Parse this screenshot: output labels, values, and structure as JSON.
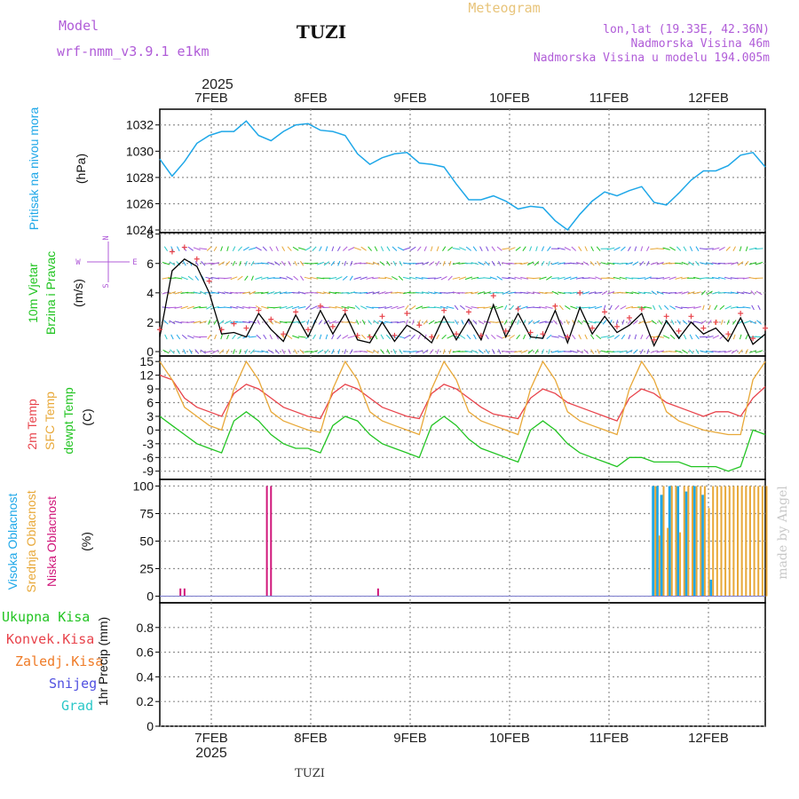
{
  "header": {
    "model_label": "Model",
    "model_name": "wrf-nmm_v3.9.1  e1km",
    "station": "TUZI",
    "title": "Meteogram",
    "lonlat": "lon,lat (19.33E, 42.36N)",
    "elevation": "Nadmorska Visina 46m",
    "model_elevation": "Nadmorska Visina u modelu 194.005m"
  },
  "footer": {
    "station": "TUZI",
    "credit": "made by Angel"
  },
  "colors": {
    "pressure": "#1ea7e8",
    "temp2m": "#e8434b",
    "sfc_temp": "#e8a838",
    "dewpt": "#22c422",
    "wind_speed": "#000000",
    "gust": "#e8434b",
    "cloud_high": "#1ea7e8",
    "cloud_mid": "#e8a838",
    "cloud_low": "#d0167a",
    "purple": "#b05cd8",
    "grid": "#909090"
  },
  "chart_data": [
    {
      "type": "line",
      "panel": "pressure",
      "labels": [
        "Pritisak na nivou mora"
      ],
      "ylabel": "(hPa)",
      "ylim": [
        1023.8,
        1033.2
      ],
      "yticks": [
        1024,
        1026,
        1028,
        1030,
        1032
      ],
      "year_label": "2025",
      "x_tick_labels": [
        "7FEB",
        "8FEB",
        "9FEB",
        "10FEB",
        "11FEB",
        "12FEB"
      ],
      "x": [
        0,
        3,
        6,
        9,
        12,
        15,
        18,
        21,
        24,
        27,
        30,
        33,
        36,
        39,
        42,
        45,
        48,
        51,
        54,
        57,
        60,
        63,
        66,
        69,
        72,
        75,
        78,
        81,
        84,
        87,
        90,
        93,
        96,
        99,
        102,
        105,
        108,
        111,
        114,
        117,
        120,
        123,
        126,
        129,
        132,
        135,
        138,
        141,
        144,
        147
      ],
      "values": [
        1029.4,
        1028.1,
        1029.2,
        1030.6,
        1031.2,
        1031.5,
        1031.5,
        1032.3,
        1031.2,
        1030.8,
        1031.5,
        1032.0,
        1032.1,
        1031.6,
        1031.5,
        1031.2,
        1029.8,
        1029.0,
        1029.5,
        1029.8,
        1029.9,
        1029.1,
        1029.0,
        1028.8,
        1027.5,
        1026.3,
        1026.3,
        1026.6,
        1026.2,
        1025.6,
        1025.8,
        1025.7,
        1024.7,
        1024.0,
        1025.2,
        1026.2,
        1026.9,
        1026.6,
        1027.0,
        1027.3,
        1026.1,
        1025.9,
        1026.8,
        1027.8,
        1028.5,
        1028.5,
        1028.9,
        1029.7,
        1029.9,
        1028.8
      ]
    },
    {
      "type": "line",
      "panel": "wind",
      "labels": [
        "10m Vjetar",
        "Brzina i Pravac"
      ],
      "ylabel": "(m/s)",
      "ylim": [
        -0.3,
        8.1
      ],
      "yticks": [
        0,
        2,
        4,
        6,
        8
      ],
      "compass": {
        "n": "N",
        "s": "S",
        "e": "E",
        "w": "W"
      },
      "series": [
        {
          "role": "speed",
          "x": [
            0,
            3,
            6,
            9,
            12,
            15,
            18,
            21,
            24,
            27,
            30,
            33,
            36,
            39,
            42,
            45,
            48,
            51,
            54,
            57,
            60,
            63,
            66,
            69,
            72,
            75,
            78,
            81,
            84,
            87,
            90,
            93,
            96,
            99,
            102,
            105,
            108,
            111,
            114,
            117,
            120,
            123,
            126,
            129,
            132,
            135,
            138,
            141,
            144,
            147
          ],
          "values": [
            1.0,
            5.5,
            6.3,
            5.8,
            4.0,
            1.2,
            1.3,
            1.0,
            2.6,
            1.5,
            0.7,
            2.5,
            1.0,
            2.8,
            1.2,
            2.6,
            0.8,
            0.6,
            2.0,
            0.7,
            1.8,
            1.3,
            0.6,
            2.4,
            0.8,
            2.2,
            0.8,
            3.2,
            1.0,
            2.6,
            1.0,
            0.9,
            2.8,
            0.6,
            3.0,
            1.2,
            2.4,
            1.3,
            1.8,
            2.6,
            0.4,
            2.1,
            0.9,
            2.0,
            1.2,
            1.6,
            0.7,
            2.3,
            0.5,
            1.2
          ]
        },
        {
          "role": "gust",
          "x": [
            0,
            3,
            6,
            9,
            12,
            15,
            18,
            21,
            24,
            27,
            30,
            33,
            36,
            39,
            42,
            45,
            48,
            51,
            54,
            57,
            60,
            63,
            66,
            69,
            72,
            75,
            78,
            81,
            84,
            87,
            90,
            93,
            96,
            99,
            102,
            105,
            108,
            111,
            114,
            117,
            120,
            123,
            126,
            129,
            132,
            135,
            138,
            141,
            144,
            147
          ],
          "values": [
            1.5,
            6.8,
            7.1,
            6.3,
            4.8,
            1.5,
            1.9,
            1.6,
            2.8,
            2.2,
            1.2,
            2.7,
            1.5,
            3.1,
            1.7,
            2.8,
            1.1,
            1.0,
            2.4,
            1.1,
            2.6,
            1.8,
            1.0,
            2.8,
            1.2,
            2.7,
            1.1,
            3.8,
            1.4,
            2.9,
            1.3,
            1.2,
            3.1,
            1.0,
            4.0,
            1.6,
            2.7,
            1.7,
            2.3,
            2.9,
            0.8,
            2.4,
            1.4,
            2.4,
            1.6,
            2.0,
            1.2,
            2.6,
            0.9,
            1.6
          ]
        }
      ]
    },
    {
      "type": "line",
      "panel": "temperature",
      "labels": [
        "2m Temp",
        "SFC Temp",
        "dewpt Temp"
      ],
      "ylabel": "(C)",
      "ylim": [
        -10.8,
        16.2
      ],
      "yticks": [
        -9,
        -6,
        -3,
        0,
        3,
        6,
        9,
        12,
        15
      ],
      "series": [
        {
          "role": "temp2m",
          "x": [
            0,
            3,
            6,
            9,
            12,
            15,
            18,
            21,
            24,
            27,
            30,
            33,
            36,
            39,
            42,
            45,
            48,
            51,
            54,
            57,
            60,
            63,
            66,
            69,
            72,
            75,
            78,
            81,
            84,
            87,
            90,
            93,
            96,
            99,
            102,
            105,
            108,
            111,
            114,
            117,
            120,
            123,
            126,
            129,
            132,
            135,
            138,
            141,
            144,
            147
          ],
          "values": [
            12,
            11,
            7,
            5,
            4,
            3,
            8,
            10,
            9,
            7,
            5,
            4,
            3,
            2.5,
            8,
            10,
            9,
            7,
            5,
            4,
            3,
            2.5,
            8,
            10,
            9,
            7,
            5,
            3.5,
            3,
            2.5,
            7,
            9,
            8,
            6,
            5,
            4,
            3,
            2,
            7,
            9,
            8,
            6,
            5,
            4,
            3,
            4,
            4,
            3,
            7,
            9.5
          ]
        },
        {
          "role": "sfc_temp",
          "x": [
            0,
            3,
            6,
            9,
            12,
            15,
            18,
            21,
            24,
            27,
            30,
            33,
            36,
            39,
            42,
            45,
            48,
            51,
            54,
            57,
            60,
            63,
            66,
            69,
            72,
            75,
            78,
            81,
            84,
            87,
            90,
            93,
            96,
            99,
            102,
            105,
            108,
            111,
            114,
            117,
            120,
            123,
            126,
            129,
            132,
            135,
            138,
            141,
            144,
            147
          ],
          "values": [
            15,
            11,
            5,
            3,
            1,
            0,
            9,
            15,
            11,
            4,
            2,
            1,
            0,
            -0.5,
            9,
            15,
            11,
            4,
            2,
            1,
            0,
            -1,
            9,
            15,
            11,
            4,
            2,
            1,
            0,
            -1,
            9,
            15,
            11,
            4,
            2,
            1,
            0,
            -1,
            9,
            15,
            11,
            4,
            2,
            1,
            0,
            -0.5,
            -1,
            -1,
            11,
            15
          ]
        },
        {
          "role": "dewpt",
          "x": [
            0,
            3,
            6,
            9,
            12,
            15,
            18,
            21,
            24,
            27,
            30,
            33,
            36,
            39,
            42,
            45,
            48,
            51,
            54,
            57,
            60,
            63,
            66,
            69,
            72,
            75,
            78,
            81,
            84,
            87,
            90,
            93,
            96,
            99,
            102,
            105,
            108,
            111,
            114,
            117,
            120,
            123,
            126,
            129,
            132,
            135,
            138,
            141,
            144,
            147
          ],
          "values": [
            3,
            1,
            -1,
            -3,
            -4,
            -5,
            2,
            4,
            2,
            -1,
            -3,
            -4,
            -4,
            -5,
            1,
            3,
            2,
            -1,
            -3,
            -4,
            -5,
            -6,
            1,
            3,
            1,
            -2,
            -4,
            -5,
            -6,
            -7,
            0,
            2,
            0,
            -3,
            -5,
            -6,
            -7,
            -8,
            -6,
            -6,
            -7,
            -7,
            -7,
            -8,
            -8,
            -8,
            -9,
            -8,
            0,
            -1
          ]
        }
      ]
    },
    {
      "type": "bar",
      "panel": "cloud",
      "labels": [
        "Visoka Oblacnost",
        "Srednja Oblacnost",
        "Niska Oblacnost"
      ],
      "ylabel": "(%)",
      "ylim": [
        -6,
        106
      ],
      "yticks": [
        0,
        25,
        50,
        75,
        100
      ],
      "series": [
        {
          "role": "low",
          "x": [
            5,
            6,
            26,
            27,
            53
          ],
          "values": [
            7,
            7,
            100,
            100,
            7
          ]
        },
        {
          "role": "high",
          "x": [
            120,
            121,
            122,
            124,
            126,
            128,
            130,
            132,
            134
          ],
          "values": [
            100,
            100,
            92,
            100,
            100,
            95,
            100,
            92,
            15
          ]
        },
        {
          "role": "mid",
          "x": [
            120,
            121,
            122,
            123,
            124,
            125,
            126,
            127,
            128,
            129,
            130,
            131,
            132,
            133,
            134,
            135,
            136,
            137,
            138,
            139,
            140,
            141,
            142,
            143,
            144,
            145,
            146,
            147
          ],
          "values": [
            100,
            55,
            100,
            62,
            100,
            100,
            58,
            100,
            100,
            100,
            100,
            100,
            100,
            80,
            100,
            100,
            100,
            100,
            100,
            100,
            100,
            100,
            100,
            100,
            100,
            100,
            100,
            100
          ]
        }
      ]
    },
    {
      "type": "line",
      "panel": "precip",
      "labels": [
        "Ukupna Kisa",
        "Konvek.Kisa",
        "Zaledj.Kisa",
        "Snijeg",
        "Grad"
      ],
      "ylabel": "1hr Precip (mm)",
      "ylim": [
        0,
        1.0
      ],
      "yticks": [
        0,
        0.2,
        0.4,
        0.6,
        0.8
      ],
      "year_label": "2025",
      "x_tick_labels": [
        "7FEB",
        "8FEB",
        "9FEB",
        "10FEB",
        "11FEB",
        "12FEB"
      ]
    }
  ]
}
